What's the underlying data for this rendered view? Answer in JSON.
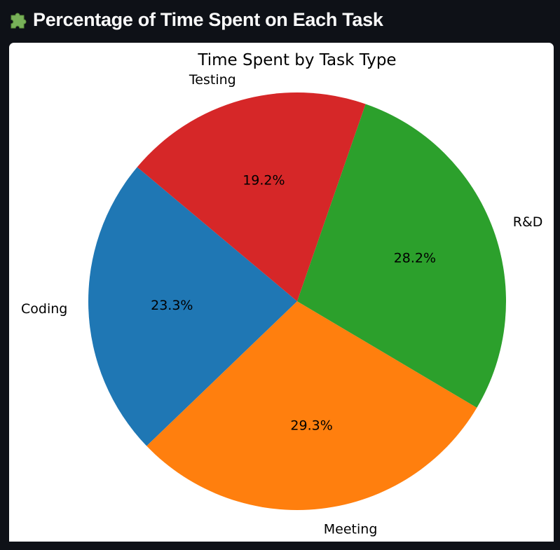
{
  "header": {
    "title": "Percentage of Time Spent on Each Task",
    "icon": "puzzle-piece-icon"
  },
  "colors": {
    "page_background": "#0e1117",
    "card_background": "#ffffff",
    "header_text": "#fafafa"
  },
  "chart_data": {
    "type": "pie",
    "title": "Time Spent by Task Type",
    "categories": [
      "Coding",
      "Meeting",
      "R&D",
      "Testing"
    ],
    "values": [
      23.3,
      29.3,
      28.2,
      19.2
    ],
    "value_labels": [
      "23.3%",
      "29.3%",
      "28.2%",
      "19.2%"
    ],
    "colors": [
      "#1f77b4",
      "#ff7f0e",
      "#2ca02c",
      "#d62728"
    ],
    "start_angle_deg": 140,
    "direction": "counterclockwise",
    "legend": "none"
  }
}
